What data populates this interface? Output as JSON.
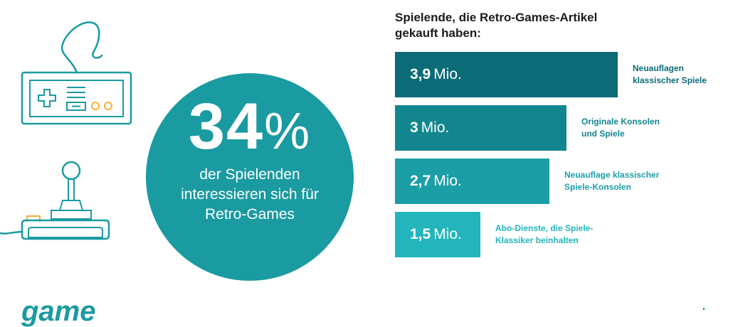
{
  "colors": {
    "circle": "#1a9aa1",
    "icon_stroke": "#1a9aa1",
    "icon_accent": "#f2b233",
    "bars": [
      "#0b6b77",
      "#12868f",
      "#1b9ea6",
      "#22b5bb"
    ],
    "labels": [
      "#0b6b77",
      "#12868f",
      "#1b9ea6",
      "#22b5bb"
    ]
  },
  "icons": [
    "gamepad-icon",
    "joystick-icon"
  ],
  "highlight": {
    "number": "34",
    "unit": "%",
    "text_lines": [
      "der Spielenden",
      "interessieren sich für",
      "Retro-Games"
    ]
  },
  "chart_data": {
    "type": "bar",
    "orientation": "horizontal",
    "title_lines": [
      "Spielende, die Retro-Games-Artikel",
      "gekauft haben:"
    ],
    "values": [
      3.9,
      3.0,
      2.7,
      1.5
    ],
    "value_labels": [
      "3,9",
      "3",
      "2,7",
      "1,5"
    ],
    "unit": "Mio.",
    "category_lines": [
      [
        "Neuauflagen",
        "klassischer Spiele"
      ],
      [
        "Originale Konsolen",
        "und Spiele"
      ],
      [
        "Neuauflage klassischer",
        "Spiele-Konsolen"
      ],
      [
        "Abo-Dienste, die Spiele-",
        "Klassiker beinhalten"
      ]
    ],
    "xlim": [
      0,
      3.9
    ]
  },
  "footer": {
    "logo": "game"
  }
}
